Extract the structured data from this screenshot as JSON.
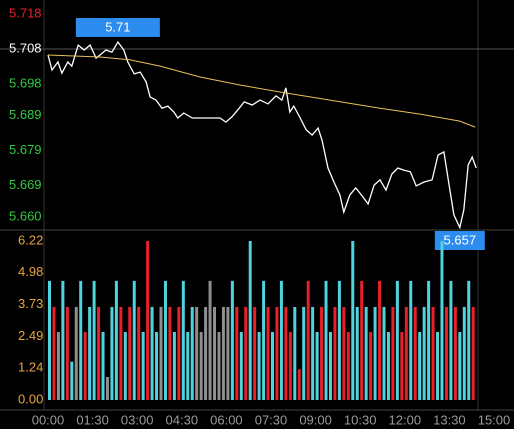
{
  "chart_data": [
    {
      "type": "line",
      "xlim": [
        0,
        900
      ],
      "ylim": [
        5.657,
        5.718
      ],
      "yticks": [
        5.718,
        5.708,
        5.698,
        5.689,
        5.679,
        5.669,
        {
          "value": 5.66,
          "label": "5.660"
        }
      ],
      "reference": 5.708,
      "up_color": "#e8202a",
      "flat_color": "#ffffff",
      "down_color": "#2ecc40",
      "annotation_color": "#2d8cf0",
      "series": [
        {
          "color": "#ffffff",
          "x": [
            0,
            8,
            20,
            28,
            40,
            48,
            61,
            73,
            85,
            97,
            105,
            117,
            129,
            141,
            153,
            161,
            174,
            186,
            198,
            206,
            218,
            230,
            242,
            254,
            262,
            274,
            291,
            307,
            327,
            347,
            359,
            371,
            383,
            396,
            412,
            428,
            444,
            460,
            472,
            480,
            488,
            496,
            509,
            521,
            533,
            545,
            553,
            565,
            577,
            589,
            597,
            609,
            621,
            634,
            646,
            658,
            670,
            682,
            694,
            706,
            718,
            731,
            743,
            759,
            775,
            787,
            799,
            811,
            819,
            831,
            839,
            848,
            856,
            864
          ],
          "values": [
            5.7063,
            5.702,
            5.7043,
            5.7011,
            5.7043,
            5.7031,
            5.7091,
            5.7077,
            5.7091,
            5.7054,
            5.7063,
            5.7077,
            5.7071,
            5.71,
            5.7077,
            5.7043,
            5.7009,
            5.7014,
            5.6986,
            5.6943,
            5.6934,
            5.6911,
            5.6917,
            5.69,
            5.6883,
            5.6897,
            5.6883,
            5.6883,
            5.6883,
            5.6883,
            5.6871,
            5.6886,
            5.6906,
            5.6929,
            5.692,
            5.6934,
            5.6923,
            5.6946,
            5.6934,
            5.6969,
            5.69,
            5.6917,
            5.6883,
            5.6849,
            5.6834,
            5.6854,
            5.682,
            5.674,
            5.67,
            5.6663,
            5.6614,
            5.6663,
            5.6683,
            5.666,
            5.6637,
            5.6691,
            5.6706,
            5.6677,
            5.6723,
            5.674,
            5.6734,
            5.6729,
            5.6689,
            5.67,
            5.6706,
            5.6777,
            5.6786,
            5.6677,
            5.6606,
            5.657,
            5.662,
            5.6749,
            5.6771,
            5.674
          ]
        },
        {
          "color": "#e6c15a",
          "x": [
            0,
            105,
            165,
            226,
            307,
            387,
            468,
            569,
            670,
            751,
            831,
            862
          ],
          "values": [
            5.7063,
            5.7057,
            5.7049,
            5.7031,
            5.7,
            5.6977,
            5.6957,
            5.6934,
            5.6911,
            5.6894,
            5.6874,
            5.6857
          ]
        }
      ],
      "annotations": [
        {
          "x": 141,
          "y": 5.71
        },
        {
          "x": 831,
          "y": 5.657
        }
      ]
    },
    {
      "type": "bar",
      "xlim": [
        0,
        900
      ],
      "ylim": [
        0,
        6.22
      ],
      "yticks": [
        {
          "value": 0,
          "label": "0.00"
        },
        1.24,
        2.49,
        3.73,
        4.98,
        6.22
      ],
      "tick_color": "#e8a33d",
      "x_tick_color": "#9a9a9a",
      "xticks": [
        {
          "value": 0,
          "label": "00:00"
        },
        {
          "value": 90,
          "label": "01:30"
        },
        {
          "value": 180,
          "label": "03:00"
        },
        {
          "value": 270,
          "label": "04:30"
        },
        {
          "value": 360,
          "label": "06:00"
        },
        {
          "value": 450,
          "label": "07:30"
        },
        {
          "value": 540,
          "label": "09:00"
        },
        {
          "value": 630,
          "label": "10:30"
        },
        {
          "value": 720,
          "label": "12:00"
        },
        {
          "value": 810,
          "label": "13:30"
        },
        {
          "value": 900,
          "label": "15:00"
        }
      ],
      "x": [
        0,
        9,
        18,
        27,
        36,
        45,
        54,
        63,
        72,
        81,
        90,
        99,
        108,
        117,
        126,
        135,
        144,
        153,
        162,
        171,
        180,
        189,
        198,
        207,
        216,
        225,
        234,
        243,
        252,
        261,
        270,
        279,
        288,
        297,
        306,
        315,
        324,
        333,
        342,
        351,
        360,
        369,
        378,
        387,
        396,
        405,
        414,
        423,
        432,
        441,
        450,
        459,
        468,
        477,
        486,
        495,
        504,
        513,
        522,
        531,
        540,
        549,
        558,
        567,
        576,
        585,
        594,
        603,
        612,
        621,
        630,
        639,
        648,
        657,
        666,
        675,
        684,
        693,
        702,
        711,
        720,
        729,
        738,
        747,
        756,
        765,
        774,
        783,
        792,
        801,
        810,
        819,
        828,
        837,
        846,
        855
      ],
      "values": [
        4.66,
        3.64,
        2.66,
        4.66,
        3.64,
        1.5,
        3.64,
        4.66,
        2.66,
        3.64,
        4.66,
        3.64,
        2.66,
        0.9,
        3.64,
        4.66,
        3.64,
        2.66,
        3.64,
        4.66,
        3.64,
        2.66,
        6.22,
        3.64,
        2.66,
        3.64,
        4.66,
        3.64,
        2.66,
        3.64,
        4.66,
        2.66,
        3.64,
        3.64,
        2.66,
        3.64,
        4.66,
        3.64,
        2.66,
        3.64,
        3.64,
        4.66,
        3.64,
        2.66,
        3.64,
        6.22,
        3.64,
        2.66,
        4.66,
        3.64,
        2.66,
        3.64,
        4.66,
        3.64,
        2.66,
        3.64,
        1.2,
        3.64,
        4.66,
        3.64,
        2.66,
        3.64,
        4.66,
        2.66,
        3.64,
        4.66,
        3.64,
        2.66,
        6.22,
        3.64,
        4.66,
        3.64,
        2.66,
        3.64,
        4.66,
        3.64,
        2.66,
        3.64,
        4.66,
        2.66,
        3.64,
        4.66,
        3.64,
        2.66,
        3.64,
        4.66,
        3.64,
        2.66,
        6.22,
        3.64,
        4.66,
        3.64,
        2.66,
        3.64,
        4.66,
        3.64
      ],
      "colors": [
        "#4fd3dc",
        "#e8202a",
        "#8f8f8f",
        "#4fd3dc",
        "#e8202a",
        "#4fd3dc",
        "#8f8f8f",
        "#4fd3dc",
        "#e8202a",
        "#4fd3dc",
        "#4fd3dc",
        "#e8202a",
        "#4fd3dc",
        "#8f8f8f",
        "#4fd3dc",
        "#4fd3dc",
        "#e8202a",
        "#4fd3dc",
        "#e8202a",
        "#4fd3dc",
        "#e8202a",
        "#4fd3dc",
        "#e8202a",
        "#4fd3dc",
        "#4fd3dc",
        "#8f8f8f",
        "#4fd3dc",
        "#e8202a",
        "#4fd3dc",
        "#e8202a",
        "#4fd3dc",
        "#4fd3dc",
        "#4fd3dc",
        "#8f8f8f",
        "#8f8f8f",
        "#8f8f8f",
        "#8f8f8f",
        "#8f8f8f",
        "#8f8f8f",
        "#8f8f8f",
        "#8f8f8f",
        "#4fd3dc",
        "#e8202a",
        "#4fd3dc",
        "#e8202a",
        "#4fd3dc",
        "#e8202a",
        "#4fd3dc",
        "#4fd3dc",
        "#e8202a",
        "#4fd3dc",
        "#e8202a",
        "#4fd3dc",
        "#e8202a",
        "#e8202a",
        "#4fd3dc",
        "#e8202a",
        "#4fd3dc",
        "#e8202a",
        "#4fd3dc",
        "#4fd3dc",
        "#e8202a",
        "#4fd3dc",
        "#4fd3dc",
        "#e8202a",
        "#4fd3dc",
        "#e8202a",
        "#e8202a",
        "#4fd3dc",
        "#4fd3dc",
        "#e8202a",
        "#4fd3dc",
        "#e8202a",
        "#4fd3dc",
        "#e8202a",
        "#4fd3dc",
        "#4fd3dc",
        "#e8202a",
        "#4fd3dc",
        "#e8202a",
        "#e8202a",
        "#4fd3dc",
        "#e8202a",
        "#4fd3dc",
        "#4fd3dc",
        "#4fd3dc",
        "#e8202a",
        "#4fd3dc",
        "#4fd3dc",
        "#e8202a",
        "#4fd3dc",
        "#e8202a",
        "#4fd3dc",
        "#4fd3dc",
        "#4fd3dc",
        "#e8202a"
      ]
    }
  ]
}
